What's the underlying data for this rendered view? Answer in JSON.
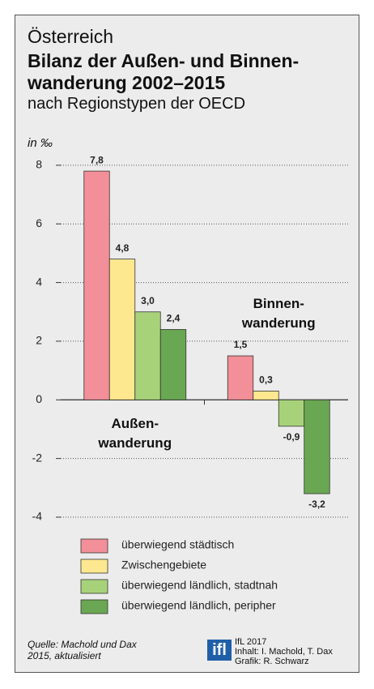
{
  "chart_data": {
    "type": "bar",
    "overline": "Österreich",
    "title": "Bilanz der Außen- und Binnen-\nwanderung 2002–2015",
    "subtitle": "nach Regionstypen der OECD",
    "y_label": "in ‰",
    "categories": [
      "Außen-\nwanderung",
      "Binnen-\nwanderung"
    ],
    "series": [
      {
        "name": "überwiegend städtisch",
        "color": "#f28f98",
        "values": [
          7.8,
          1.5
        ],
        "value_labels": [
          "7,8",
          "1,5"
        ]
      },
      {
        "name": "Zwischengebiete",
        "color": "#fde890",
        "values": [
          4.8,
          0.3
        ],
        "value_labels": [
          "4,8",
          "0,3"
        ]
      },
      {
        "name": "überwiegend ländlich, stadtnah",
        "color": "#a8d27a",
        "values": [
          3.0,
          -0.9
        ],
        "value_labels": [
          "3,0",
          "-0,9"
        ]
      },
      {
        "name": "überwiegend ländlich, peripher",
        "color": "#6aa752",
        "values": [
          2.4,
          -3.2
        ],
        "value_labels": [
          "2,4",
          "-3,2"
        ]
      }
    ],
    "ylim": [
      -4,
      8.3
    ],
    "yticks": [
      -4,
      -2,
      0,
      2,
      4,
      6,
      8
    ],
    "grid": true,
    "source": "Quelle: Machold und Dax\n2015, aktualisiert",
    "logo": "ifl",
    "credits": "IfL 2017\nInhalt: I. Machold, T. Dax\nGrafik: R. Schwarz"
  }
}
